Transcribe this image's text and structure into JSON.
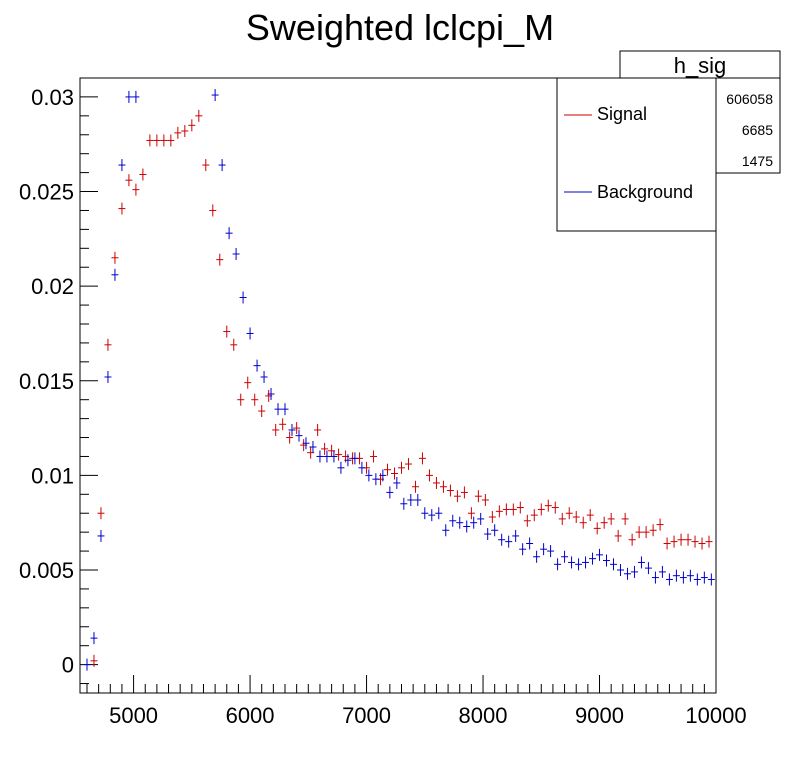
{
  "chart_data": {
    "type": "scatter",
    "title": "Sweighted lclcpi_M",
    "xlabel": "",
    "ylabel": "",
    "xlim": [
      4540,
      10000
    ],
    "ylim": [
      -0.0015,
      0.031
    ],
    "x_ticks": [
      "5000",
      "6000",
      "7000",
      "8000",
      "9000",
      "10000"
    ],
    "y_ticks": [
      "0",
      "0.005",
      "0.01",
      "0.015",
      "0.02",
      "0.025",
      "0.03"
    ],
    "x_tick_values": [
      5000,
      6000,
      7000,
      8000,
      9000,
      10000
    ],
    "y_tick_values": [
      0,
      0.005,
      0.01,
      0.015,
      0.02,
      0.025,
      0.03
    ],
    "grid": false,
    "stats_box": {
      "name": "h_sig",
      "values": [
        "606058",
        "6685",
        "1475"
      ]
    },
    "legend": {
      "placement": "top-right",
      "entries": [
        {
          "label": "Signal",
          "color": "#cc0000"
        },
        {
          "label": "Background",
          "color": "#0000cc"
        }
      ]
    },
    "series": [
      {
        "name": "Signal",
        "color": "#cc0000",
        "x": [
          4660,
          4720,
          4780,
          4840,
          4900,
          4960,
          5020,
          5080,
          5140,
          5200,
          5260,
          5320,
          5380,
          5440,
          5500,
          5560,
          5620,
          5680,
          5740,
          5800,
          5860,
          5920,
          5980,
          6040,
          6100,
          6160,
          6220,
          6280,
          6340,
          6400,
          6460,
          6520,
          6580,
          6640,
          6700,
          6760,
          6820,
          6880,
          6940,
          7000,
          7060,
          7120,
          7180,
          7240,
          7300,
          7360,
          7420,
          7480,
          7540,
          7600,
          7660,
          7720,
          7780,
          7840,
          7900,
          7960,
          8020,
          8080,
          8140,
          8200,
          8260,
          8320,
          8380,
          8440,
          8500,
          8560,
          8620,
          8680,
          8740,
          8800,
          8860,
          8920,
          8980,
          9040,
          9100,
          9160,
          9220,
          9280,
          9340,
          9400,
          9460,
          9520,
          9580,
          9640,
          9700,
          9760,
          9820,
          9880,
          9940
        ],
        "y": [
          0.0002,
          0.008,
          0.0169,
          0.0215,
          0.0241,
          0.0256,
          0.0251,
          0.0259,
          0.0277,
          0.0277,
          0.0277,
          0.0277,
          0.0281,
          0.0282,
          0.0285,
          0.029,
          0.0264,
          0.024,
          0.0214,
          0.0176,
          0.0169,
          0.014,
          0.0149,
          0.014,
          0.0134,
          0.0142,
          0.0124,
          0.0127,
          0.012,
          0.0125,
          0.0116,
          0.0112,
          0.0124,
          0.0114,
          0.0113,
          0.0111,
          0.011,
          0.0109,
          0.0109,
          0.0104,
          0.011,
          0.0098,
          0.0103,
          0.0101,
          0.0104,
          0.0106,
          0.0094,
          0.0109,
          0.01,
          0.0096,
          0.0094,
          0.0092,
          0.0089,
          0.0091,
          0.008,
          0.0089,
          0.0087,
          0.0078,
          0.0081,
          0.0082,
          0.0082,
          0.0083,
          0.0076,
          0.0079,
          0.0082,
          0.0084,
          0.0083,
          0.0077,
          0.008,
          0.0078,
          0.0075,
          0.0079,
          0.0072,
          0.0075,
          0.0077,
          0.0068,
          0.0077,
          0.0066,
          0.007,
          0.007,
          0.0071,
          0.0074,
          0.0064,
          0.0065,
          0.0066,
          0.0066,
          0.0065,
          0.0064,
          0.0065
        ]
      },
      {
        "name": "Background",
        "color": "#0000cc",
        "x": [
          4600,
          4660,
          4720,
          4780,
          4840,
          4900,
          4960,
          5020,
          5700,
          5760,
          5820,
          5880,
          5940,
          6000,
          6060,
          6120,
          6180,
          6240,
          6300,
          6360,
          6420,
          6480,
          6540,
          6600,
          6660,
          6720,
          6780,
          6840,
          6900,
          6960,
          7020,
          7080,
          7140,
          7200,
          7260,
          7320,
          7380,
          7440,
          7500,
          7560,
          7620,
          7680,
          7740,
          7800,
          7860,
          7920,
          7980,
          8040,
          8100,
          8160,
          8220,
          8280,
          8340,
          8400,
          8460,
          8520,
          8580,
          8640,
          8700,
          8760,
          8820,
          8880,
          8940,
          9000,
          9060,
          9120,
          9180,
          9240,
          9300,
          9360,
          9420,
          9480,
          9540,
          9600,
          9660,
          9720,
          9780,
          9840,
          9900,
          9960
        ],
        "y": [
          0.0,
          0.0014,
          0.0068,
          0.0152,
          0.0206,
          0.0264,
          0.03,
          0.03,
          0.0301,
          0.0264,
          0.0228,
          0.0217,
          0.0194,
          0.0175,
          0.0158,
          0.0152,
          0.0143,
          0.0135,
          0.0135,
          0.0124,
          0.0121,
          0.0117,
          0.0115,
          0.011,
          0.011,
          0.011,
          0.0104,
          0.0108,
          0.0109,
          0.0104,
          0.01,
          0.0098,
          0.01,
          0.0091,
          0.0096,
          0.0085,
          0.0087,
          0.0087,
          0.008,
          0.0079,
          0.008,
          0.0071,
          0.0076,
          0.0075,
          0.0073,
          0.0075,
          0.0077,
          0.0069,
          0.0071,
          0.0066,
          0.0065,
          0.0068,
          0.0061,
          0.0064,
          0.0057,
          0.0061,
          0.006,
          0.0053,
          0.0057,
          0.0054,
          0.0053,
          0.0054,
          0.0056,
          0.0058,
          0.0055,
          0.0053,
          0.005,
          0.0048,
          0.0049,
          0.0054,
          0.0051,
          0.0046,
          0.0049,
          0.0045,
          0.0047,
          0.0046,
          0.0047,
          0.0045,
          0.0046,
          0.0045
        ]
      }
    ]
  }
}
